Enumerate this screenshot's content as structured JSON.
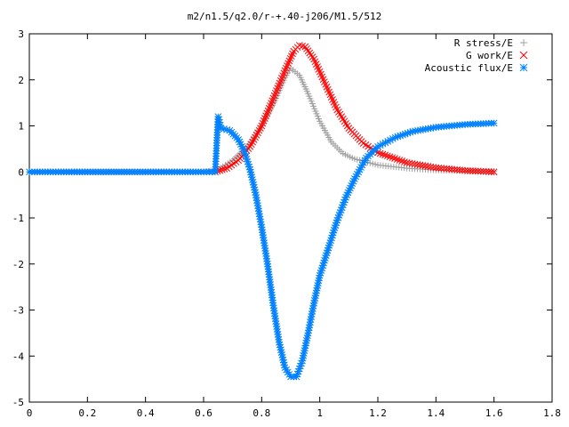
{
  "chart_data": {
    "type": "scatter",
    "title": "m2/n1.5/q2.0/r-+.40-j206/M1.5/512",
    "xlabel": "",
    "ylabel": "",
    "xlim": [
      0,
      1.8
    ],
    "ylim": [
      -5,
      3
    ],
    "x_ticks": [
      "0",
      "0.2",
      "0.4",
      "0.6",
      "0.8",
      "1",
      "1.2",
      "1.4",
      "1.6",
      "1.8"
    ],
    "y_ticks": [
      "3",
      "2",
      "1",
      "0",
      "-1",
      "-2",
      "-3",
      "-4",
      "-5"
    ],
    "grid": false,
    "legend_position": "top-right",
    "series": [
      {
        "name": "R stress/E",
        "marker": "+",
        "color": "#a0a0a0",
        "points": [
          [
            0.0,
            0
          ],
          [
            0.6,
            0
          ],
          [
            0.65,
            0.05
          ],
          [
            0.7,
            0.25
          ],
          [
            0.75,
            0.55
          ],
          [
            0.8,
            1.0
          ],
          [
            0.85,
            1.6
          ],
          [
            0.88,
            2.05
          ],
          [
            0.9,
            2.25
          ],
          [
            0.93,
            2.1
          ],
          [
            0.96,
            1.7
          ],
          [
            1.0,
            1.1
          ],
          [
            1.04,
            0.65
          ],
          [
            1.08,
            0.4
          ],
          [
            1.12,
            0.28
          ],
          [
            1.2,
            0.15
          ],
          [
            1.3,
            0.08
          ],
          [
            1.4,
            0.04
          ],
          [
            1.5,
            0.02
          ],
          [
            1.6,
            0.01
          ]
        ]
      },
      {
        "name": "G work/E",
        "marker": "x",
        "color": "#ff0000",
        "points": [
          [
            0.64,
            0
          ],
          [
            0.68,
            0.08
          ],
          [
            0.72,
            0.25
          ],
          [
            0.76,
            0.55
          ],
          [
            0.8,
            1.0
          ],
          [
            0.84,
            1.6
          ],
          [
            0.88,
            2.2
          ],
          [
            0.91,
            2.62
          ],
          [
            0.93,
            2.75
          ],
          [
            0.95,
            2.72
          ],
          [
            0.98,
            2.45
          ],
          [
            1.02,
            1.9
          ],
          [
            1.06,
            1.35
          ],
          [
            1.1,
            0.95
          ],
          [
            1.15,
            0.62
          ],
          [
            1.2,
            0.42
          ],
          [
            1.3,
            0.2
          ],
          [
            1.4,
            0.09
          ],
          [
            1.5,
            0.03
          ],
          [
            1.6,
            0.0
          ]
        ]
      },
      {
        "name": "Acoustic flux/E",
        "marker": "*",
        "color": "#0080ff",
        "points": [
          [
            0.0,
            0
          ],
          [
            0.2,
            0
          ],
          [
            0.4,
            0
          ],
          [
            0.6,
            0
          ],
          [
            0.64,
            0
          ],
          [
            0.65,
            1.2
          ],
          [
            0.66,
            0.95
          ],
          [
            0.69,
            0.9
          ],
          [
            0.72,
            0.7
          ],
          [
            0.74,
            0.45
          ],
          [
            0.76,
            0.05
          ],
          [
            0.78,
            -0.5
          ],
          [
            0.8,
            -1.2
          ],
          [
            0.82,
            -2.0
          ],
          [
            0.84,
            -2.9
          ],
          [
            0.86,
            -3.7
          ],
          [
            0.88,
            -4.25
          ],
          [
            0.9,
            -4.45
          ],
          [
            0.92,
            -4.45
          ],
          [
            0.94,
            -4.1
          ],
          [
            0.96,
            -3.5
          ],
          [
            0.98,
            -2.85
          ],
          [
            1.0,
            -2.25
          ],
          [
            1.03,
            -1.65
          ],
          [
            1.06,
            -1.05
          ],
          [
            1.09,
            -0.55
          ],
          [
            1.12,
            -0.15
          ],
          [
            1.16,
            0.3
          ],
          [
            1.2,
            0.55
          ],
          [
            1.26,
            0.75
          ],
          [
            1.32,
            0.88
          ],
          [
            1.4,
            0.97
          ],
          [
            1.5,
            1.03
          ],
          [
            1.6,
            1.06
          ]
        ]
      }
    ]
  }
}
